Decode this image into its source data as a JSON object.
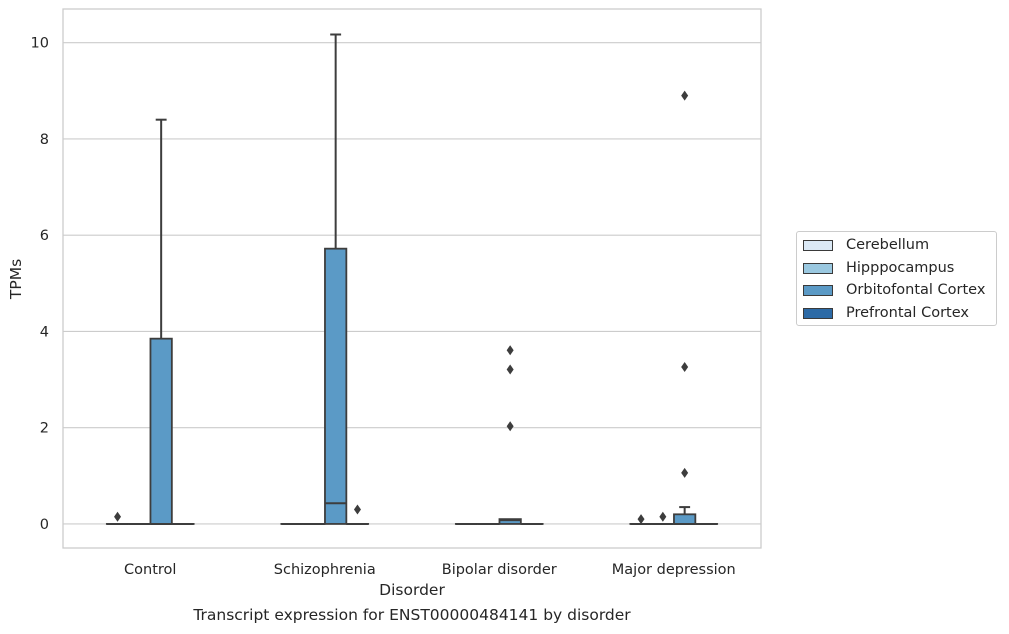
{
  "chart_data": {
    "type": "box",
    "title": "",
    "caption": "Transcript expression for ENST00000484141 by disorder",
    "xlabel": "Disorder",
    "ylabel": "TPMs",
    "ylim": [
      -0.5,
      10.7
    ],
    "yticks": [
      0,
      2,
      4,
      6,
      8,
      10
    ],
    "grid": "horizontal",
    "legend_position": "right",
    "categories": [
      "Control",
      "Schizophrenia",
      "Bipolar disorder",
      "Major depression"
    ],
    "series": [
      {
        "name": "Cerebellum",
        "color": "#dbe9f6",
        "boxes": [
          {
            "q1": 0,
            "median": 0,
            "q3": 0,
            "whisker_low": 0,
            "whisker_high": 0,
            "outliers": [
              0.15
            ]
          },
          {
            "q1": 0,
            "median": 0,
            "q3": 0,
            "whisker_low": 0,
            "whisker_high": 0,
            "outliers": []
          },
          {
            "q1": 0,
            "median": 0,
            "q3": 0,
            "whisker_low": 0,
            "whisker_high": 0,
            "outliers": []
          },
          {
            "q1": 0,
            "median": 0,
            "q3": 0,
            "whisker_low": 0,
            "whisker_high": 0,
            "outliers": [
              0.1
            ]
          }
        ]
      },
      {
        "name": "Hipppocampus",
        "color": "#9ac8e0",
        "boxes": [
          {
            "q1": 0,
            "median": 0,
            "q3": 0,
            "whisker_low": 0,
            "whisker_high": 0,
            "outliers": []
          },
          {
            "q1": 0,
            "median": 0,
            "q3": 0,
            "whisker_low": 0,
            "whisker_high": 0,
            "outliers": []
          },
          {
            "q1": 0,
            "median": 0,
            "q3": 0,
            "whisker_low": 0,
            "whisker_high": 0,
            "outliers": []
          },
          {
            "q1": 0,
            "median": 0,
            "q3": 0,
            "whisker_low": 0,
            "whisker_high": 0,
            "outliers": [
              0.15
            ]
          }
        ]
      },
      {
        "name": "Orbitofontal Cortex",
        "color": "#5b9ac6",
        "boxes": [
          {
            "q1": 0,
            "median": 0,
            "q3": 3.85,
            "whisker_low": 0,
            "whisker_high": 8.4,
            "outliers": []
          },
          {
            "q1": 0,
            "median": 0.43,
            "q3": 5.72,
            "whisker_low": 0,
            "whisker_high": 10.17,
            "outliers": []
          },
          {
            "q1": 0,
            "median": 0.08,
            "q3": 0.1,
            "whisker_low": 0,
            "whisker_high": 0.1,
            "outliers": [
              2.03,
              3.21,
              3.61
            ]
          },
          {
            "q1": 0,
            "median": 0,
            "q3": 0.2,
            "whisker_low": 0,
            "whisker_high": 0.35,
            "outliers": [
              1.06,
              3.26,
              8.9
            ]
          }
        ]
      },
      {
        "name": "Prefrontal Cortex",
        "color": "#2c6aa6",
        "boxes": [
          {
            "q1": 0,
            "median": 0,
            "q3": 0,
            "whisker_low": 0,
            "whisker_high": 0,
            "outliers": []
          },
          {
            "q1": 0,
            "median": 0,
            "q3": 0,
            "whisker_low": 0,
            "whisker_high": 0,
            "outliers": [
              0.3
            ]
          },
          {
            "q1": 0,
            "median": 0,
            "q3": 0,
            "whisker_low": 0,
            "whisker_high": 0,
            "outliers": []
          },
          {
            "q1": 0,
            "median": 0,
            "q3": 0,
            "whisker_low": 0,
            "whisker_high": 0,
            "outliers": []
          }
        ]
      }
    ]
  }
}
